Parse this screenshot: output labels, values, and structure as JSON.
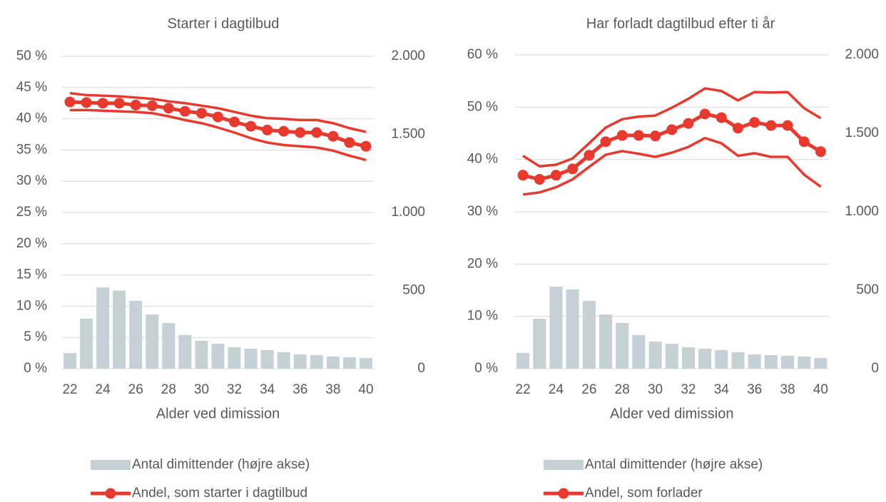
{
  "chart_data": [
    {
      "type": "combo",
      "title": "Starter i dagtilbud",
      "x_label": "Alder ved dimission",
      "categories": [
        22,
        null,
        24,
        null,
        26,
        null,
        28,
        null,
        30,
        null,
        32,
        null,
        34,
        null,
        36,
        null,
        38,
        null,
        40
      ],
      "ylim": [
        0,
        50
      ],
      "yticks": [
        {
          "value": 0,
          "label": "0 %"
        },
        {
          "value": 5,
          "label": "5 %"
        },
        {
          "value": 10,
          "label": "10 %"
        },
        {
          "value": 15,
          "label": "15 %"
        },
        {
          "value": 20,
          "label": "20 %"
        },
        {
          "value": 25,
          "label": "25 %"
        },
        {
          "value": 30,
          "label": "30 %"
        },
        {
          "value": 35,
          "label": "35 %"
        },
        {
          "value": 40,
          "label": "40 %"
        },
        {
          "value": 45,
          "label": "45 %"
        },
        {
          "value": 50,
          "label": "50 %"
        }
      ],
      "y2lim": [
        0,
        2000
      ],
      "y2ticks": [
        0,
        500,
        {
          "value": 1000,
          "label": "1.000"
        },
        {
          "value": 1500,
          "label": "1.500"
        },
        {
          "value": 2000,
          "label": "2.000"
        }
      ],
      "grid": true,
      "series": [
        {
          "name": "Antal dimittender (højre akse)",
          "type": "bar",
          "axis": "y2",
          "color": "#c5d1d4",
          "values": [
            100,
            320,
            520,
            500,
            434,
            347,
            292,
            215,
            178,
            160,
            137,
            128,
            119,
            105,
            91,
            87,
            78,
            73,
            68
          ]
        },
        {
          "name": "Andel, som starter i dagtilbud",
          "type": "line",
          "marker": true,
          "color": "#e8392f",
          "values": [
            42.7,
            42.6,
            42.5,
            42.5,
            42.2,
            42.1,
            41.7,
            41.2,
            40.9,
            40.3,
            39.5,
            38.8,
            38.2,
            38.0,
            37.8,
            37.8,
            37.2,
            36.2,
            35.6
          ]
        },
        {
          "type": "line",
          "color": "#e8392f",
          "values": [
            44.1,
            43.8,
            43.7,
            43.6,
            43.4,
            43.2,
            42.8,
            42.5,
            42.1,
            41.7,
            41.1,
            40.5,
            40.1,
            40.0,
            39.8,
            39.8,
            39.3,
            38.5,
            37.9
          ]
        },
        {
          "type": "line",
          "color": "#e8392f",
          "values": [
            41.4,
            41.4,
            41.3,
            41.2,
            41.1,
            40.9,
            40.4,
            39.8,
            39.3,
            38.6,
            37.8,
            36.9,
            36.2,
            35.8,
            35.6,
            35.4,
            34.9,
            34.1,
            33.4
          ]
        }
      ]
    },
    {
      "type": "combo",
      "title": "Har forladt dagtilbud efter ti år",
      "x_label": "Alder ved dimission",
      "categories": [
        22,
        null,
        24,
        null,
        26,
        null,
        28,
        null,
        30,
        null,
        32,
        null,
        34,
        null,
        36,
        null,
        38,
        null,
        40
      ],
      "ylim": [
        0,
        60
      ],
      "yticks": [
        {
          "value": 0,
          "label": "0 %"
        },
        {
          "value": 10,
          "label": "10 %"
        },
        {
          "value": 20,
          "label": "20 %"
        },
        {
          "value": 30,
          "label": "30 %"
        },
        {
          "value": 40,
          "label": "40 %"
        },
        {
          "value": 50,
          "label": "50 %"
        },
        {
          "value": 60,
          "label": "60 %"
        }
      ],
      "y2lim": [
        0,
        2000
      ],
      "y2ticks": [
        0,
        500,
        {
          "value": 1000,
          "label": "1.000"
        },
        {
          "value": 1500,
          "label": "1.500"
        },
        {
          "value": 2000,
          "label": "2.000"
        }
      ],
      "grid": true,
      "series": [
        {
          "name": "Antal dimittender (højre akse)",
          "type": "bar",
          "axis": "y2",
          "color": "#c5d1d4",
          "values": [
            100,
            318,
            523,
            505,
            432,
            345,
            291,
            214,
            173,
            159,
            136,
            127,
            118,
            105,
            91,
            86,
            82,
            77,
            68
          ]
        },
        {
          "name": "Andel, som forlader",
          "type": "line",
          "marker": true,
          "color": "#e8392f",
          "values": [
            37.0,
            36.2,
            37.0,
            38.2,
            40.8,
            43.4,
            44.6,
            44.6,
            44.5,
            45.7,
            46.9,
            48.7,
            48.0,
            46.0,
            47.1,
            46.5,
            46.5,
            43.4,
            41.5
          ]
        },
        {
          "type": "line",
          "color": "#e8392f",
          "values": [
            40.7,
            38.7,
            39.0,
            40.2,
            43.1,
            46.1,
            47.7,
            48.2,
            48.4,
            49.9,
            51.6,
            53.6,
            53.1,
            51.3,
            52.9,
            52.8,
            52.9,
            49.8,
            47.9
          ]
        },
        {
          "type": "line",
          "color": "#e8392f",
          "values": [
            33.3,
            33.7,
            34.7,
            36.2,
            38.6,
            40.9,
            41.6,
            41.1,
            40.5,
            41.3,
            42.4,
            44.1,
            43.1,
            40.7,
            41.2,
            40.5,
            40.5,
            37.1,
            34.8
          ]
        }
      ]
    }
  ]
}
